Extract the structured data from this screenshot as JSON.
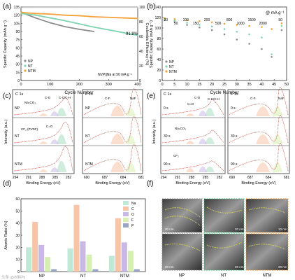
{
  "figure": {
    "panel_letters": [
      "(a)",
      "(b)",
      "(c)",
      "(d)",
      "(e)",
      "(f)"
    ]
  },
  "chart_data": [
    {
      "id": "a",
      "type": "line",
      "xlabel": "Cycle Number",
      "ylabel": "Specific Capacity (mAh g⁻¹)",
      "y2label": "Coulombic Efficiency (%)",
      "xlim": [
        0,
        400
      ],
      "ylim": [
        0,
        135
      ],
      "y2lim": [
        0,
        100
      ],
      "xticks": [
        0,
        100,
        200,
        300,
        400
      ],
      "yticks": [
        0,
        15,
        30,
        45,
        60,
        75,
        90,
        105,
        120,
        135
      ],
      "y2ticks": [
        0,
        20,
        40,
        60,
        80,
        100
      ],
      "annotations": [
        "91.8%",
        "NVP||Na at 50 mA g⁻¹"
      ],
      "legend": [
        "NP",
        "NT",
        "NTM"
      ],
      "series": [
        {
          "name": "NP",
          "color": "#8c8c8c",
          "x": [
            1,
            20,
            50,
            100,
            150,
            200,
            250
          ],
          "y": [
            126,
            121,
            115,
            106,
            99,
            94,
            90
          ]
        },
        {
          "name": "NT",
          "color": "#7fd3b0",
          "x": [
            1,
            50,
            100,
            150,
            200,
            250,
            300,
            350,
            400
          ],
          "y": [
            123,
            120,
            115,
            110,
            104,
            98,
            93,
            88,
            83
          ]
        },
        {
          "name": "NTM",
          "color": "#f3a23a",
          "x": [
            1,
            50,
            100,
            150,
            200,
            250,
            300,
            350,
            400
          ],
          "y": [
            125,
            123,
            122,
            120,
            119,
            117,
            116,
            115,
            114
          ]
        },
        {
          "name": "CE",
          "axis": "y2",
          "color": "#c9c9c9",
          "x": [
            1,
            400
          ],
          "y": [
            99.5,
            99.6
          ]
        }
      ]
    },
    {
      "id": "b",
      "type": "scatter",
      "xlabel": "Cycle Number",
      "ylabel": "Specific Capacity (mAh g⁻¹)",
      "xlim": [
        0,
        50
      ],
      "ylim": [
        0,
        140
      ],
      "xticks": [
        0,
        5,
        10,
        15,
        20,
        25,
        30,
        35,
        40,
        45,
        50
      ],
      "yticks": [
        0,
        20,
        40,
        60,
        80,
        100,
        120,
        140
      ],
      "rate_labels": [
        "20",
        "50",
        "100",
        "150",
        "200",
        "500",
        "800",
        "1000",
        "1500",
        "2000",
        "50"
      ],
      "unit_label": "@ mA g⁻¹",
      "legend": [
        "NP",
        "NT",
        "NTM"
      ],
      "series": [
        {
          "name": "NP",
          "color": "#8c8c8c",
          "x": [
            1,
            5,
            10,
            15,
            20,
            25,
            30,
            35,
            40,
            44,
            48
          ],
          "y": [
            115,
            112,
            106,
            101,
            96,
            88,
            78,
            70,
            60,
            45,
            96
          ]
        },
        {
          "name": "NT",
          "color": "#7fd3b0",
          "x": [
            1,
            5,
            10,
            15,
            20,
            25,
            30,
            35,
            40,
            44,
            48
          ],
          "y": [
            117,
            114,
            110,
            106,
            103,
            98,
            93,
            88,
            82,
            50,
            104
          ]
        },
        {
          "name": "NTM",
          "color": "#f3a23a",
          "x": [
            1,
            5,
            10,
            15,
            20,
            25,
            30,
            35,
            40,
            44,
            48
          ],
          "y": [
            119,
            117,
            115,
            113,
            111,
            108,
            106,
            104,
            102,
            98,
            109
          ]
        }
      ]
    },
    {
      "id": "d",
      "type": "bar",
      "xlabel": "",
      "ylabel": "Atomic Ratio (%)",
      "ylim": [
        0,
        60
      ],
      "yticks": [
        0,
        10,
        20,
        30,
        40,
        50,
        60
      ],
      "categories": [
        "NP",
        "NT",
        "NTM"
      ],
      "series": [
        {
          "name": "Na",
          "color": "#bfe8d6",
          "values": [
            20,
            19,
            13
          ]
        },
        {
          "name": "C",
          "color": "#f7c4a6",
          "values": [
            41,
            55,
            44
          ]
        },
        {
          "name": "O",
          "color": "#c9b8e6",
          "values": [
            22,
            25,
            24
          ]
        },
        {
          "name": "F",
          "color": "#d7f0b1",
          "values": [
            12,
            14,
            17
          ]
        },
        {
          "name": "P",
          "color": "#98a6c4",
          "values": [
            2,
            2,
            2
          ]
        }
      ]
    }
  ],
  "xps": {
    "xlabel_c1s": "Binding Energy (eV)",
    "xlabel_f1s": "Binding Energy (eV)",
    "ylabel": "Intensity (a.u.)",
    "c1s_ticks": [
      "294",
      "291",
      "288",
      "285",
      "282"
    ],
    "f1s_ticks": [
      "690",
      "687",
      "684",
      "681"
    ],
    "c1s_title": "C 1s",
    "f1s_title": "F 1s",
    "panel_c_rows": [
      "NP",
      "NT",
      "NTM"
    ],
    "panel_e_rows": [
      "0 s",
      "30 s",
      "90 s"
    ],
    "labels_c": [
      "Na₂CO₃",
      "C-O",
      "C-C/C-H",
      "CF₂ (PVDF)",
      "C=O",
      "C-F",
      "NaF"
    ],
    "labels_e": [
      "C-O",
      "C=O",
      "C-C/C-H",
      "Na₂CO₃",
      "CF₂",
      "C-F",
      "NaF"
    ]
  },
  "tem": {
    "scale_labels": [
      "20 nm",
      "20 nm",
      "10 nm",
      "20 nm",
      "20 nm",
      "20 nm"
    ],
    "captions": [
      "NP",
      "NT",
      "NTM"
    ]
  },
  "watermark": "头条 @材料与"
}
